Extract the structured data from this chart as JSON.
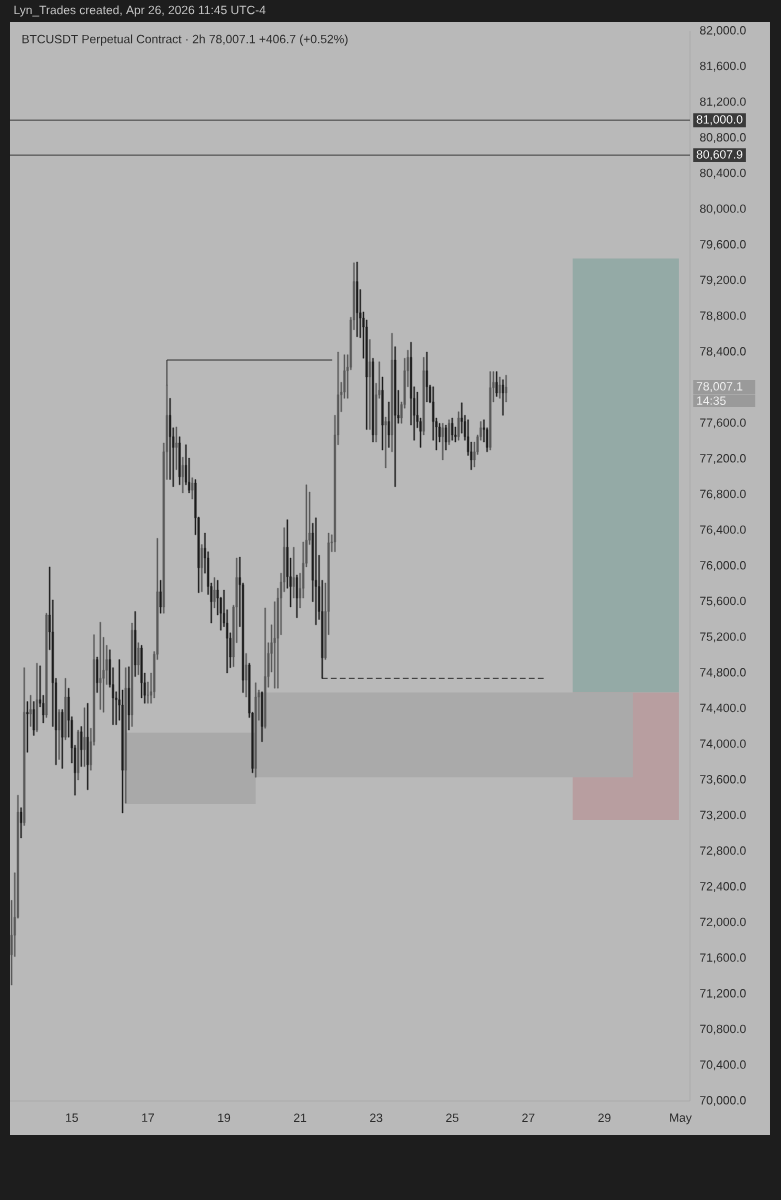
{
  "chart_data": {
    "type": "candlestick",
    "title": "BTCUSDT Perpetual Contract · 2h 78,007.1 +406.7 (+0.52%)",
    "annotations": [
      "Lyn_Trades created, Apr 26, 2026 11:45 UTC-4",
      "78,007.1",
      "14:35"
    ],
    "xlim": [
      "2026-04-13T09:00",
      "2026-05-01T06:00"
    ],
    "xticks": [
      {
        "value": "2026-04-15",
        "label": "15"
      },
      {
        "value": "2026-04-17",
        "label": "17"
      },
      {
        "value": "2026-04-19",
        "label": "19"
      },
      {
        "value": "2026-04-21",
        "label": "21"
      },
      {
        "value": "2026-04-23",
        "label": "23"
      },
      {
        "value": "2026-04-25",
        "label": "25"
      },
      {
        "value": "2026-04-27",
        "label": "27"
      },
      {
        "value": "2026-04-29",
        "label": "29"
      },
      {
        "value": "2026-05-01",
        "label": "May"
      }
    ],
    "ylim": [
      70000,
      82000
    ],
    "yticks": [
      {
        "value": 70000,
        "label": "70,000.0"
      },
      {
        "value": 70400,
        "label": "70,400.0"
      },
      {
        "value": 70800,
        "label": "70,800.0"
      },
      {
        "value": 71200,
        "label": "71,200.0"
      },
      {
        "value": 71600,
        "label": "71,600.0"
      },
      {
        "value": 72000,
        "label": "72,000.0"
      },
      {
        "value": 72400,
        "label": "72,400.0"
      },
      {
        "value": 72800,
        "label": "72,800.0"
      },
      {
        "value": 73200,
        "label": "73,200.0"
      },
      {
        "value": 73600,
        "label": "73,600.0"
      },
      {
        "value": 74000,
        "label": "74,000.0"
      },
      {
        "value": 74400,
        "label": "74,400.0"
      },
      {
        "value": 74800,
        "label": "74,800.0"
      },
      {
        "value": 75200,
        "label": "75,200.0"
      },
      {
        "value": 75600,
        "label": "75,600.0"
      },
      {
        "value": 76000,
        "label": "76,000.0"
      },
      {
        "value": 76400,
        "label": "76,400.0"
      },
      {
        "value": 76800,
        "label": "76,800.0"
      },
      {
        "value": 77200,
        "label": "77,200.0"
      },
      {
        "value": 77600,
        "label": "77,600.0"
      },
      {
        "value": 78400,
        "label": "78,400.0"
      },
      {
        "value": 78800,
        "label": "78,800.0"
      },
      {
        "value": 79200,
        "label": "79,200.0"
      },
      {
        "value": 79600,
        "label": "79,600.0"
      },
      {
        "value": 80000,
        "label": "80,000.0"
      },
      {
        "value": 80400,
        "label": "80,400.0"
      },
      {
        "value": 80800,
        "label": "80,800.0"
      },
      {
        "value": 81200,
        "label": "81,200.0"
      },
      {
        "value": 81600,
        "label": "81,600.0"
      },
      {
        "value": 82000,
        "label": "82,000.0"
      }
    ],
    "ref_lines": [
      {
        "axis": "y",
        "value": 81000,
        "label": "81,000.0",
        "color": "#2e2e2e"
      },
      {
        "axis": "y",
        "value": 80607.9,
        "label": "80,607.9",
        "color": "#2e2e2e"
      }
    ],
    "series": [
      {
        "type": "line",
        "x": [
          "2026-04-28T04:00",
          "2026-04-30T23:00"
        ],
        "values": [
          null,
          null
        ],
        "lower": [
          74580,
          74580
        ],
        "upper": [
          79450,
          79450
        ],
        "color": "#94aaa6"
      },
      {
        "type": "line",
        "x": [
          "2026-04-28T04:00",
          "2026-04-30T23:00"
        ],
        "values": [
          null,
          null
        ],
        "lower": [
          73150,
          73150
        ],
        "upper": [
          74580,
          74580
        ],
        "color": "#b89ea0"
      },
      {
        "type": "line",
        "x": [
          "2026-04-16T10:00",
          "2026-04-19T20:00"
        ],
        "values": [
          null,
          null
        ],
        "lower": [
          73330,
          73330
        ],
        "upper": [
          74130,
          74130
        ],
        "color": "#a9a9a9"
      },
      {
        "type": "line",
        "x": [
          "2026-04-19T20:00",
          "2026-04-29T18:00"
        ],
        "values": [
          null,
          null
        ],
        "lower": [
          73630,
          73630
        ],
        "upper": [
          74580,
          74580
        ],
        "color": "#aaaaaa"
      },
      {
        "type": "line",
        "x": [
          "2026-04-17T12:00",
          "2026-04-17T12:00",
          "2026-04-21T20:00"
        ],
        "values": [
          78030,
          78310,
          78310
        ],
        "color": "#2e2e2e"
      },
      {
        "type": "line",
        "x": [
          "2026-04-21T14:00",
          "2026-04-27T11:00"
        ],
        "values": [
          74740,
          74740
        ],
        "color": "#2e2e2e",
        "line_style": "dashed"
      },
      {
        "x": [
          "2026-04-13T10:00",
          "2026-04-13T12:00",
          "2026-04-13T14:00",
          "2026-04-13T16:00",
          "2026-04-13T18:00",
          "2026-04-13T20:00",
          "2026-04-13T22:00",
          "2026-04-14T00:00",
          "2026-04-14T02:00",
          "2026-04-14T04:00",
          "2026-04-14T06:00",
          "2026-04-14T08:00",
          "2026-04-14T10:00",
          "2026-04-14T12:00",
          "2026-04-14T14:00",
          "2026-04-14T16:00",
          "2026-04-14T18:00",
          "2026-04-14T20:00",
          "2026-04-14T22:00",
          "2026-04-15T00:00",
          "2026-04-15T02:00",
          "2026-04-15T04:00",
          "2026-04-15T06:00",
          "2026-04-15T08:00",
          "2026-04-15T10:00",
          "2026-04-15T12:00",
          "2026-04-15T14:00",
          "2026-04-15T16:00",
          "2026-04-15T18:00",
          "2026-04-15T20:00",
          "2026-04-15T22:00",
          "2026-04-16T00:00",
          "2026-04-16T02:00",
          "2026-04-16T04:00",
          "2026-04-16T06:00",
          "2026-04-16T08:00",
          "2026-04-16T10:00",
          "2026-04-16T12:00",
          "2026-04-16T14:00",
          "2026-04-16T16:00",
          "2026-04-16T18:00",
          "2026-04-16T20:00",
          "2026-04-16T22:00",
          "2026-04-17T00:00",
          "2026-04-17T02:00",
          "2026-04-17T04:00",
          "2026-04-17T06:00",
          "2026-04-17T08:00",
          "2026-04-17T10:00",
          "2026-04-17T12:00",
          "2026-04-17T14:00",
          "2026-04-17T16:00",
          "2026-04-17T18:00",
          "2026-04-17T20:00",
          "2026-04-17T22:00",
          "2026-04-18T00:00",
          "2026-04-18T02:00",
          "2026-04-18T04:00",
          "2026-04-18T06:00",
          "2026-04-18T08:00",
          "2026-04-18T10:00",
          "2026-04-18T12:00",
          "2026-04-18T14:00",
          "2026-04-18T16:00",
          "2026-04-18T18:00",
          "2026-04-18T20:00",
          "2026-04-18T22:00",
          "2026-04-19T00:00",
          "2026-04-19T02:00",
          "2026-04-19T04:00",
          "2026-04-19T06:00",
          "2026-04-19T08:00",
          "2026-04-19T10:00",
          "2026-04-19T12:00",
          "2026-04-19T14:00",
          "2026-04-19T16:00",
          "2026-04-19T18:00",
          "2026-04-19T20:00",
          "2026-04-19T22:00",
          "2026-04-20T00:00",
          "2026-04-20T02:00",
          "2026-04-20T04:00",
          "2026-04-20T06:00",
          "2026-04-20T08:00",
          "2026-04-20T10:00",
          "2026-04-20T12:00",
          "2026-04-20T14:00",
          "2026-04-20T16:00",
          "2026-04-20T18:00",
          "2026-04-20T20:00",
          "2026-04-20T22:00",
          "2026-04-21T00:00",
          "2026-04-21T02:00",
          "2026-04-21T04:00",
          "2026-04-21T06:00",
          "2026-04-21T08:00",
          "2026-04-21T10:00",
          "2026-04-21T12:00",
          "2026-04-21T14:00",
          "2026-04-21T16:00",
          "2026-04-21T18:00",
          "2026-04-21T20:00",
          "2026-04-21T22:00",
          "2026-04-22T00:00",
          "2026-04-22T02:00",
          "2026-04-22T04:00",
          "2026-04-22T06:00",
          "2026-04-22T08:00",
          "2026-04-22T10:00",
          "2026-04-22T12:00",
          "2026-04-22T14:00",
          "2026-04-22T16:00",
          "2026-04-22T18:00",
          "2026-04-22T20:00",
          "2026-04-22T22:00",
          "2026-04-23T00:00",
          "2026-04-23T02:00",
          "2026-04-23T04:00",
          "2026-04-23T06:00",
          "2026-04-23T08:00",
          "2026-04-23T10:00",
          "2026-04-23T12:00",
          "2026-04-23T14:00",
          "2026-04-23T16:00",
          "2026-04-23T18:00",
          "2026-04-23T20:00",
          "2026-04-23T22:00",
          "2026-04-24T00:00",
          "2026-04-24T02:00",
          "2026-04-24T04:00",
          "2026-04-24T06:00",
          "2026-04-24T08:00",
          "2026-04-24T10:00",
          "2026-04-24T12:00",
          "2026-04-24T14:00",
          "2026-04-24T16:00",
          "2026-04-24T18:00",
          "2026-04-24T20:00",
          "2026-04-24T22:00",
          "2026-04-25T00:00",
          "2026-04-25T02:00",
          "2026-04-25T04:00",
          "2026-04-25T06:00",
          "2026-04-25T08:00",
          "2026-04-25T10:00",
          "2026-04-25T12:00",
          "2026-04-25T14:00",
          "2026-04-25T16:00",
          "2026-04-25T18:00",
          "2026-04-25T20:00",
          "2026-04-25T22:00",
          "2026-04-26T00:00",
          "2026-04-26T02:00",
          "2026-04-26T04:00",
          "2026-04-26T06:00",
          "2026-04-26T08:00",
          "2026-04-26T10:00"
        ],
        "ohlc": [
          [
            71640,
            72250,
            71300,
            71860
          ],
          [
            71860,
            72560,
            71620,
            72060
          ],
          [
            72060,
            73430,
            72050,
            73240
          ],
          [
            73240,
            73290,
            72950,
            73120
          ],
          [
            73120,
            74860,
            73090,
            74360
          ],
          [
            74360,
            74480,
            73910,
            74340
          ],
          [
            74340,
            74550,
            74200,
            74390
          ],
          [
            74390,
            74480,
            74100,
            74160
          ],
          [
            74160,
            74910,
            74140,
            74500
          ],
          [
            74500,
            74880,
            74420,
            74460
          ],
          [
            74460,
            74550,
            74240,
            74330
          ],
          [
            74330,
            75470,
            74300,
            75450
          ],
          [
            75450,
            75990,
            75060,
            75260
          ],
          [
            75260,
            75620,
            74200,
            74690
          ],
          [
            74690,
            74740,
            73770,
            74160
          ],
          [
            74160,
            74390,
            73830,
            74360
          ],
          [
            74360,
            74390,
            73730,
            74080
          ],
          [
            74080,
            74740,
            74050,
            74530
          ],
          [
            74530,
            74630,
            74080,
            74270
          ],
          [
            74270,
            74310,
            73790,
            73960
          ],
          [
            73960,
            73990,
            73430,
            73680
          ],
          [
            73680,
            74160,
            73600,
            74140
          ],
          [
            74140,
            74200,
            73750,
            73940
          ],
          [
            73940,
            74410,
            73750,
            74080
          ],
          [
            74080,
            74460,
            73490,
            73770
          ],
          [
            73770,
            74180,
            73710,
            74030
          ],
          [
            74030,
            75230,
            73990,
            74950
          ],
          [
            74950,
            74980,
            74580,
            74690
          ],
          [
            74690,
            75370,
            74390,
            74740
          ],
          [
            74740,
            75200,
            74360,
            74830
          ],
          [
            74830,
            75110,
            74670,
            74950
          ],
          [
            74950,
            75060,
            74640,
            74670
          ],
          [
            74670,
            74860,
            74220,
            74520
          ],
          [
            74520,
            74590,
            74220,
            74500
          ],
          [
            74500,
            74950,
            74270,
            74440
          ],
          [
            74440,
            74610,
            73230,
            73710
          ],
          [
            73710,
            74860,
            73340,
            74630
          ],
          [
            74630,
            74870,
            74160,
            74330
          ],
          [
            74330,
            75360,
            74200,
            75280
          ],
          [
            75280,
            75490,
            74760,
            74890
          ],
          [
            74890,
            75140,
            74780,
            75080
          ],
          [
            75080,
            75110,
            74520,
            74690
          ],
          [
            74690,
            74800,
            74460,
            74550
          ],
          [
            74550,
            74700,
            74460,
            74550
          ],
          [
            74550,
            74800,
            74460,
            74590
          ],
          [
            74590,
            75040,
            74520,
            75010
          ],
          [
            75010,
            76310,
            74950,
            75710
          ],
          [
            75710,
            75840,
            75470,
            75540
          ],
          [
            75540,
            77380,
            75470,
            77280
          ],
          [
            77280,
            78030,
            76970,
            77690
          ],
          [
            77690,
            77880,
            76970,
            77450
          ],
          [
            77450,
            77550,
            76890,
            77330
          ],
          [
            77330,
            77560,
            77080,
            77380
          ],
          [
            77380,
            77450,
            76910,
            77000
          ],
          [
            77000,
            77220,
            76820,
            77130
          ],
          [
            77130,
            77360,
            76910,
            76940
          ],
          [
            76940,
            77210,
            76820,
            76850
          ],
          [
            76850,
            76990,
            76750,
            76930
          ],
          [
            76930,
            76970,
            76350,
            76540
          ],
          [
            76540,
            76550,
            75700,
            75980
          ],
          [
            75980,
            76240,
            75710,
            76200
          ],
          [
            76200,
            76370,
            75920,
            76090
          ],
          [
            76090,
            76160,
            75680,
            75770
          ],
          [
            75770,
            75810,
            75360,
            75600
          ],
          [
            75600,
            75870,
            75530,
            75730
          ],
          [
            75730,
            75840,
            75450,
            75640
          ],
          [
            75640,
            75650,
            75280,
            75470
          ],
          [
            75470,
            75730,
            75320,
            75360
          ],
          [
            75360,
            75510,
            74800,
            75190
          ],
          [
            75190,
            75250,
            74860,
            74980
          ],
          [
            74980,
            75560,
            74870,
            75540
          ],
          [
            75540,
            76090,
            75140,
            75870
          ],
          [
            75870,
            76100,
            75320,
            75790
          ],
          [
            75790,
            75810,
            74580,
            74720
          ],
          [
            74720,
            75020,
            74530,
            74890
          ],
          [
            74890,
            74910,
            74300,
            74350
          ],
          [
            74350,
            74360,
            73680,
            73730
          ],
          [
            73730,
            74690,
            73630,
            74530
          ],
          [
            74530,
            74610,
            74270,
            74580
          ],
          [
            74580,
            74590,
            74030,
            74200
          ],
          [
            74200,
            75530,
            74180,
            74760
          ],
          [
            74760,
            75140,
            74640,
            75020
          ],
          [
            75020,
            75340,
            74810,
            75140
          ],
          [
            75140,
            75600,
            74630,
            75190
          ],
          [
            75190,
            75750,
            74630,
            75640
          ],
          [
            75640,
            75920,
            75230,
            75820
          ],
          [
            75820,
            76430,
            75710,
            76210
          ],
          [
            76210,
            76520,
            75750,
            75880
          ],
          [
            75880,
            76090,
            75540,
            75770
          ],
          [
            75770,
            76210,
            75640,
            75870
          ],
          [
            75870,
            75900,
            75420,
            75640
          ],
          [
            75640,
            75920,
            75530,
            75750
          ],
          [
            75750,
            76270,
            75640,
            76030
          ],
          [
            76030,
            76910,
            75990,
            76290
          ],
          [
            76290,
            76830,
            76240,
            76370
          ],
          [
            76370,
            76480,
            75600,
            75840
          ],
          [
            75840,
            76540,
            75340,
            75770
          ],
          [
            75770,
            76120,
            75400,
            75490
          ],
          [
            75490,
            75840,
            74740,
            74970
          ],
          [
            74970,
            75810,
            74950,
            75490
          ],
          [
            75490,
            76370,
            75230,
            76260
          ],
          [
            76260,
            76350,
            76160,
            76270
          ],
          [
            76270,
            77690,
            76160,
            77470
          ],
          [
            77470,
            78400,
            77360,
            77920
          ],
          [
            77920,
            78060,
            77730,
            77950
          ],
          [
            77950,
            78370,
            77880,
            78190
          ],
          [
            78190,
            78370,
            77880,
            78230
          ],
          [
            78230,
            78790,
            78200,
            78760
          ],
          [
            78760,
            79400,
            78650,
            79190
          ],
          [
            79190,
            79410,
            78570,
            78840
          ],
          [
            78840,
            79100,
            78560,
            78780
          ],
          [
            78780,
            78850,
            78330,
            78680
          ],
          [
            78680,
            78760,
            77530,
            78120
          ],
          [
            78120,
            78540,
            77530,
            78290
          ],
          [
            78290,
            78330,
            77390,
            77470
          ],
          [
            77470,
            78050,
            77390,
            77920
          ],
          [
            77920,
            78290,
            77880,
            77970
          ],
          [
            77970,
            78120,
            77300,
            77580
          ],
          [
            77580,
            77670,
            77100,
            77620
          ],
          [
            77620,
            77840,
            77330,
            77470
          ],
          [
            77470,
            78610,
            77280,
            78310
          ],
          [
            78310,
            78460,
            76890,
            77690
          ],
          [
            77690,
            77970,
            77600,
            77660
          ],
          [
            77660,
            77840,
            77600,
            77810
          ],
          [
            77810,
            78330,
            77770,
            78190
          ],
          [
            78190,
            78420,
            78010,
            78340
          ],
          [
            78340,
            78510,
            77580,
            77880
          ],
          [
            77880,
            78010,
            77410,
            77690
          ],
          [
            77690,
            77950,
            77550,
            77620
          ],
          [
            77620,
            77660,
            77330,
            77510
          ],
          [
            77510,
            78340,
            77470,
            78190
          ],
          [
            78190,
            78400,
            77840,
            78010
          ],
          [
            78010,
            78030,
            77830,
            77840
          ],
          [
            77840,
            78010,
            77410,
            77620
          ],
          [
            77620,
            77660,
            77300,
            77560
          ],
          [
            77560,
            77600,
            77390,
            77450
          ],
          [
            77450,
            77600,
            77190,
            77550
          ],
          [
            77550,
            77580,
            77300,
            77390
          ],
          [
            77390,
            77640,
            77360,
            77600
          ],
          [
            77600,
            77660,
            77410,
            77470
          ],
          [
            77470,
            77560,
            77390,
            77450
          ],
          [
            77450,
            77730,
            77410,
            77660
          ],
          [
            77660,
            77830,
            77490,
            77620
          ],
          [
            77620,
            77690,
            77410,
            77450
          ],
          [
            77450,
            77640,
            77240,
            77280
          ],
          [
            77280,
            77390,
            77080,
            77190
          ],
          [
            77190,
            77390,
            77110,
            77280
          ],
          [
            77280,
            77470,
            77250,
            77450
          ],
          [
            77450,
            77620,
            77410,
            77550
          ],
          [
            77550,
            77640,
            77390,
            77530
          ],
          [
            77530,
            77550,
            77280,
            77330
          ],
          [
            77330,
            78180,
            77300,
            78000
          ],
          [
            78000,
            78180,
            77840,
            78060
          ],
          [
            78060,
            78180,
            77900,
            77940
          ],
          [
            77940,
            78120,
            77880,
            78030
          ],
          [
            78030,
            78090,
            77690,
            77940
          ],
          [
            77940,
            78140,
            77840,
            78007.1
          ]
        ],
        "colors": [
          "#5a5a5a",
          "#5a5a5a",
          "#5a5a5a",
          "#1e1e1e",
          "#5a5a5a",
          "#1e1e1e",
          "#5a5a5a",
          "#1e1e1e",
          "#5a5a5a",
          "#1e1e1e",
          "#1e1e1e",
          "#5a5a5a",
          "#1e1e1e",
          "#1e1e1e",
          "#1e1e1e",
          "#5a5a5a",
          "#1e1e1e",
          "#5a5a5a",
          "#1e1e1e",
          "#1e1e1e",
          "#1e1e1e",
          "#5a5a5a",
          "#1e1e1e",
          "#5a5a5a",
          "#1e1e1e",
          "#5a5a5a",
          "#5a5a5a",
          "#1e1e1e",
          "#5a5a5a",
          "#5a5a5a",
          "#5a5a5a",
          "#1e1e1e",
          "#1e1e1e",
          "#1e1e1e",
          "#1e1e1e",
          "#1e1e1e",
          "#5a5a5a",
          "#1e1e1e",
          "#5a5a5a",
          "#1e1e1e",
          "#5a5a5a",
          "#1e1e1e",
          "#1e1e1e",
          "#5a5a5a",
          "#5a5a5a",
          "#5a5a5a",
          "#5a5a5a",
          "#1e1e1e",
          "#5a5a5a",
          "#5a5a5a",
          "#1e1e1e",
          "#1e1e1e",
          "#5a5a5a",
          "#1e1e1e",
          "#5a5a5a",
          "#1e1e1e",
          "#1e1e1e",
          "#5a5a5a",
          "#1e1e1e",
          "#1e1e1e",
          "#5a5a5a",
          "#1e1e1e",
          "#1e1e1e",
          "#1e1e1e",
          "#5a5a5a",
          "#1e1e1e",
          "#1e1e1e",
          "#1e1e1e",
          "#1e1e1e",
          "#1e1e1e",
          "#5a5a5a",
          "#5a5a5a",
          "#1e1e1e",
          "#1e1e1e",
          "#5a5a5a",
          "#1e1e1e",
          "#1e1e1e",
          "#5a5a5a",
          "#5a5a5a",
          "#1e1e1e",
          "#5a5a5a",
          "#5a5a5a",
          "#5a5a5a",
          "#5a5a5a",
          "#5a5a5a",
          "#5a5a5a",
          "#5a5a5a",
          "#1e1e1e",
          "#1e1e1e",
          "#5a5a5a",
          "#1e1e1e",
          "#5a5a5a",
          "#5a5a5a",
          "#5a5a5a",
          "#5a5a5a",
          "#1e1e1e",
          "#1e1e1e",
          "#1e1e1e",
          "#1e1e1e",
          "#5a5a5a",
          "#5a5a5a",
          "#5a5a5a",
          "#5a5a5a",
          "#5a5a5a",
          "#5a5a5a",
          "#5a5a5a",
          "#5a5a5a",
          "#5a5a5a",
          "#5a5a5a",
          "#1e1e1e",
          "#1e1e1e",
          "#1e1e1e",
          "#1e1e1e",
          "#5a5a5a",
          "#1e1e1e",
          "#5a5a5a",
          "#5a5a5a",
          "#1e1e1e",
          "#5a5a5a",
          "#1e1e1e",
          "#5a5a5a",
          "#1e1e1e",
          "#1e1e1e",
          "#5a5a5a",
          "#5a5a5a",
          "#5a5a5a",
          "#1e1e1e",
          "#1e1e1e",
          "#1e1e1e",
          "#1e1e1e",
          "#5a5a5a",
          "#1e1e1e",
          "#1e1e1e",
          "#1e1e1e",
          "#1e1e1e",
          "#1e1e1e",
          "#5a5a5a",
          "#1e1e1e",
          "#5a5a5a",
          "#1e1e1e",
          "#1e1e1e",
          "#5a5a5a",
          "#1e1e1e",
          "#1e1e1e",
          "#1e1e1e",
          "#1e1e1e",
          "#5a5a5a",
          "#5a5a5a",
          "#5a5a5a",
          "#1e1e1e",
          "#1e1e1e",
          "#5a5a5a",
          "#5a5a5a",
          "#1e1e1e",
          "#5a5a5a",
          "#1e1e1e",
          "#5a5a5a"
        ]
      }
    ]
  }
}
